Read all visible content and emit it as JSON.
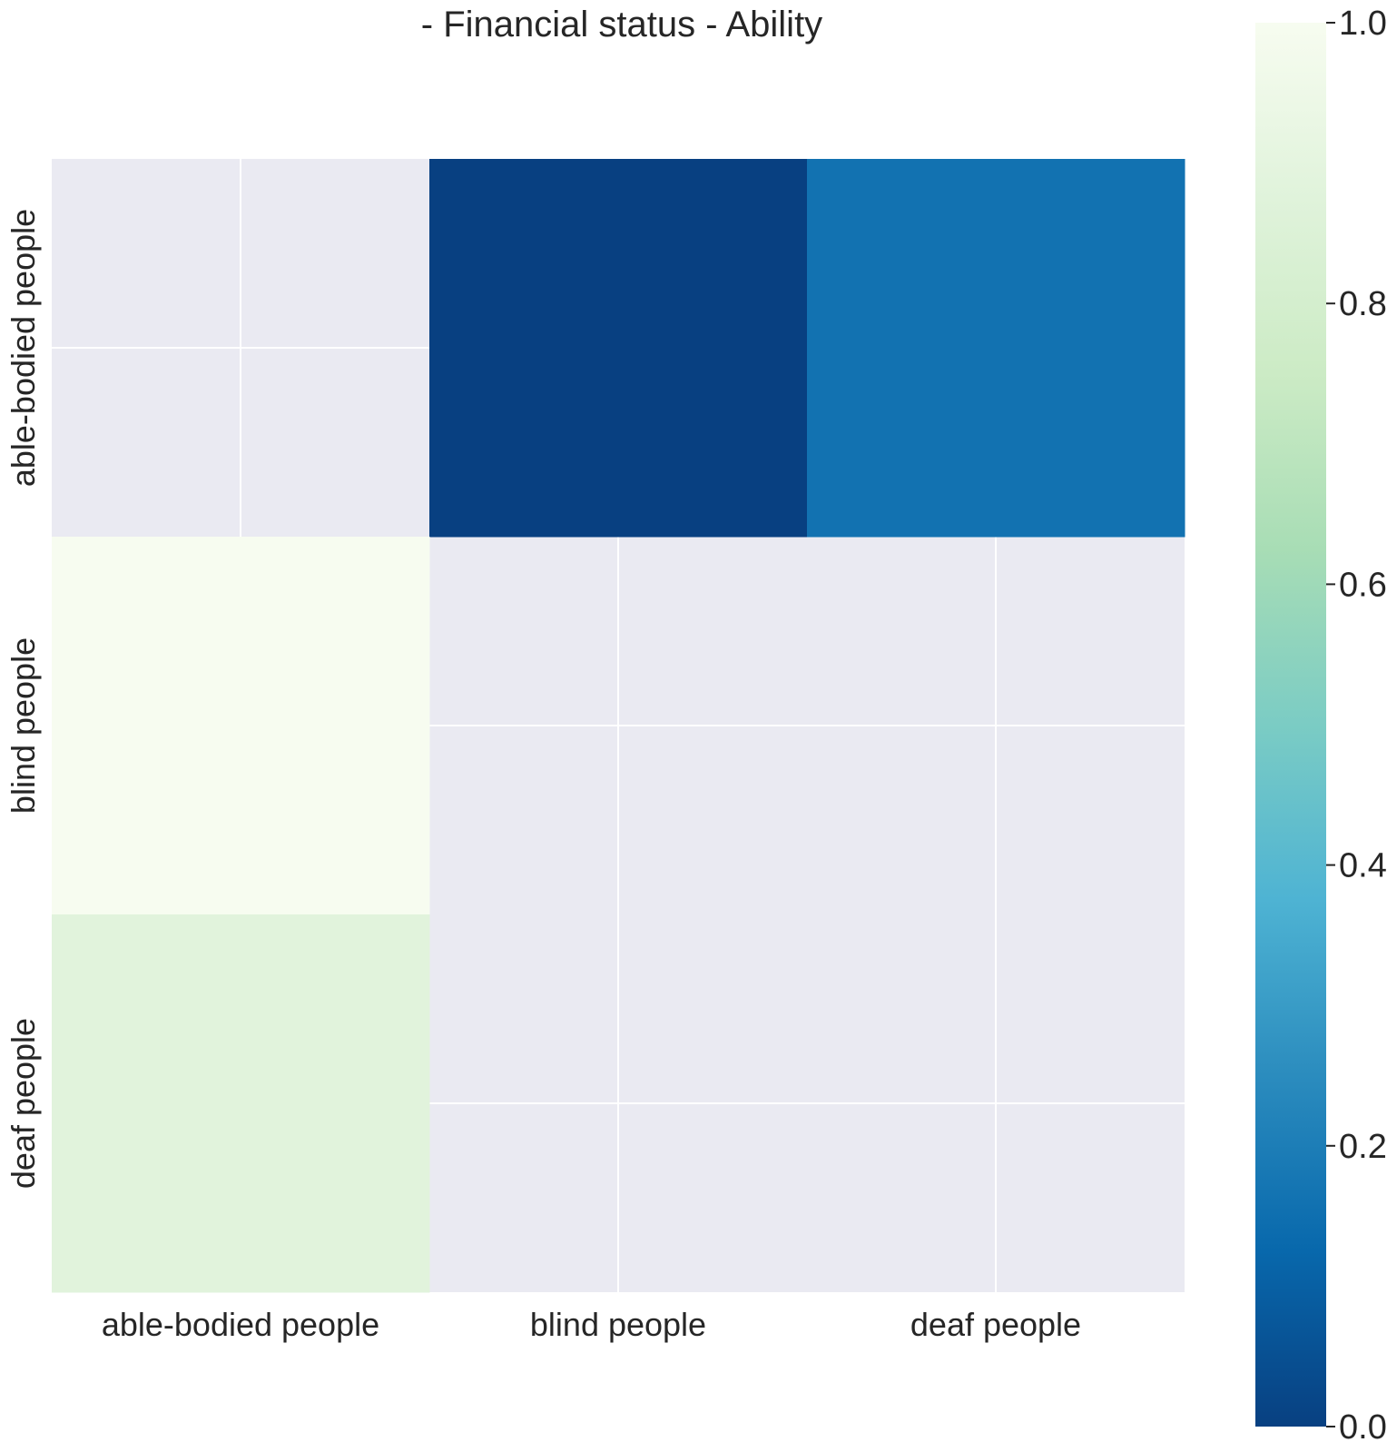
{
  "chart_data": {
    "type": "heatmap",
    "title": "- Financial status - Ability",
    "xlabel": "",
    "ylabel": "",
    "x_categories": [
      "able-bodied people",
      "blind people",
      "deaf people"
    ],
    "y_categories": [
      "able-bodied people",
      "blind people",
      "deaf people"
    ],
    "values": [
      [
        null,
        0.0,
        0.16
      ],
      [
        1.0,
        null,
        null
      ],
      [
        0.88,
        null,
        null
      ]
    ],
    "missing_color": "#eaeaf2",
    "grid": true,
    "colorbar": {
      "range": [
        0.0,
        1.0
      ],
      "ticks": [
        "0.0",
        "0.2",
        "0.4",
        "0.6",
        "0.8",
        "1.0"
      ],
      "colormap": "GnBu_r"
    }
  }
}
